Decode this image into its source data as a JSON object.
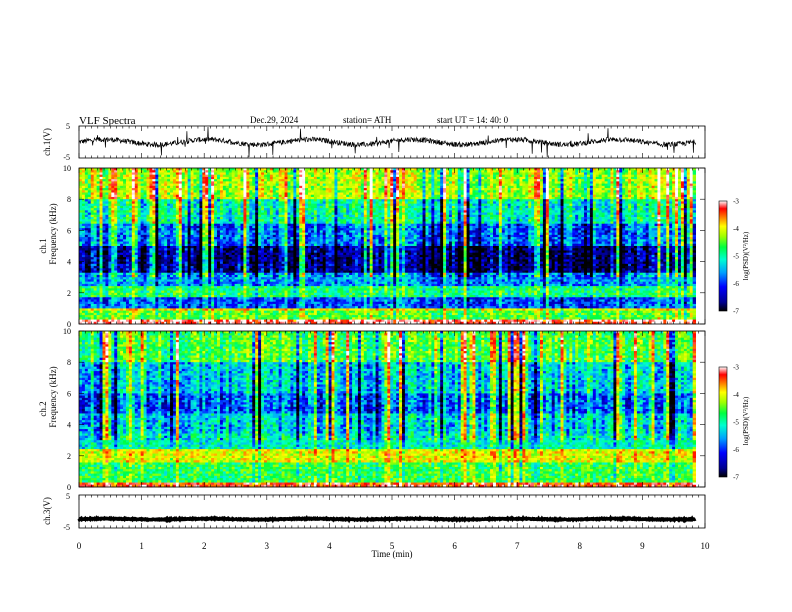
{
  "header": {
    "title": "VLF  Spectra",
    "date": "Dec.29, 2024",
    "station": "station= ATH",
    "start": "start  UT  =    14: 40: 0"
  },
  "chart_data": [
    {
      "type": "line",
      "name": "waveform-ch1",
      "ylabel": "ch.1(V)",
      "ylim": [
        -5,
        5
      ],
      "yticks": [
        5,
        -5
      ],
      "xlim": [
        0,
        10
      ],
      "trace_mean": 0,
      "trace_color": "#000000"
    },
    {
      "type": "heatmap",
      "name": "spectrogram-ch1",
      "ylabel_top": "ch.1",
      "ylabel": "Frequency  (kHz)",
      "ylim": [
        0,
        10
      ],
      "yticks": [
        0,
        2,
        4,
        6,
        8,
        10
      ],
      "xlim": [
        0,
        9.85
      ],
      "colorbar": {
        "label": "log(PSD)(V²/Hz)",
        "range": [
          -7,
          -3
        ],
        "ticks": [
          -3,
          -4,
          -5,
          -6,
          -7
        ]
      },
      "bands": [
        {
          "freq": [
            0.0,
            0.3
          ],
          "level": -3.2
        },
        {
          "freq": [
            0.3,
            0.8
          ],
          "level": -4.8
        },
        {
          "freq": [
            0.8,
            1.0
          ],
          "level": -4.2
        },
        {
          "freq": [
            1.0,
            1.7
          ],
          "level": -6.0
        },
        {
          "freq": [
            1.7,
            2.4
          ],
          "level": -5.1
        },
        {
          "freq": [
            2.4,
            3.3
          ],
          "level": -5.8
        },
        {
          "freq": [
            3.3,
            5.0
          ],
          "level": -6.6
        },
        {
          "freq": [
            5.0,
            6.5
          ],
          "level": -5.9
        },
        {
          "freq": [
            6.5,
            8.0
          ],
          "level": -5.3
        },
        {
          "freq": [
            8.0,
            10.0
          ],
          "level": -4.5
        }
      ]
    },
    {
      "type": "heatmap",
      "name": "spectrogram-ch2",
      "ylabel_top": "ch.2",
      "ylabel": "Frequency  (kHz)",
      "ylim": [
        0,
        10
      ],
      "yticks": [
        0,
        2,
        4,
        6,
        8,
        10
      ],
      "xlim": [
        0,
        9.85
      ],
      "colorbar": {
        "label": "log(PSD)(V²/Hz)",
        "range": [
          -7,
          -3
        ],
        "ticks": [
          -3,
          -4,
          -5,
          -6,
          -7
        ]
      },
      "bands": [
        {
          "freq": [
            0.0,
            0.3
          ],
          "level": -3.5
        },
        {
          "freq": [
            0.3,
            1.6
          ],
          "level": -5.0
        },
        {
          "freq": [
            1.6,
            2.5
          ],
          "level": -4.3
        },
        {
          "freq": [
            2.5,
            3.4
          ],
          "level": -5.4
        },
        {
          "freq": [
            3.4,
            4.7
          ],
          "level": -5.6
        },
        {
          "freq": [
            4.7,
            6.0
          ],
          "level": -6.0
        },
        {
          "freq": [
            6.0,
            8.0
          ],
          "level": -5.6
        },
        {
          "freq": [
            8.0,
            10.0
          ],
          "level": -4.9
        }
      ]
    },
    {
      "type": "line",
      "name": "waveform-ch3",
      "ylabel": "ch.3(V)",
      "ylim": [
        -5,
        5
      ],
      "yticks": [
        5,
        -5
      ],
      "xlim": [
        0,
        10
      ],
      "trace_mean": -2.3,
      "trace_color": "#000000"
    }
  ],
  "xaxis": {
    "label": "Time  (min)",
    "range": [
      0,
      10
    ],
    "ticks": [
      0,
      1,
      2,
      3,
      4,
      5,
      6,
      7,
      8,
      9,
      10
    ]
  },
  "colors": {
    "colormap": [
      "#000000",
      "#000090",
      "#0000ff",
      "#00a0ff",
      "#00ffd0",
      "#00ff40",
      "#a0ff00",
      "#ffff00",
      "#ff8000",
      "#ff0000",
      "#ffffff"
    ]
  }
}
